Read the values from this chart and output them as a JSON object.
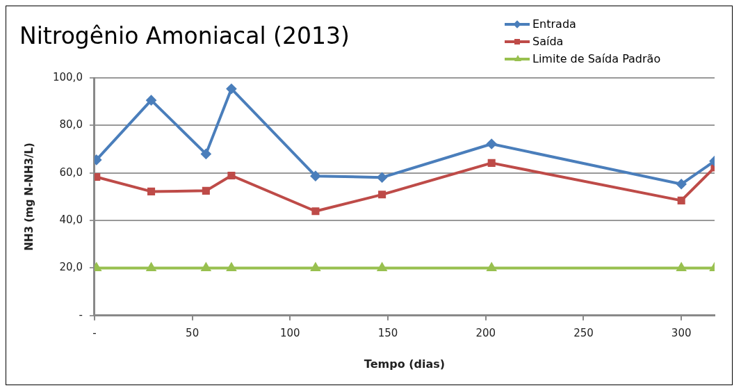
{
  "chart_data": {
    "type": "line",
    "title": "Nitrogênio Amoniacal (2013)",
    "xlabel": "Tempo (dias)",
    "ylabel": "NH3 (mg N-NH3/L)",
    "x": [
      1,
      29,
      57,
      70,
      113,
      147,
      203,
      300,
      317
    ],
    "series": [
      {
        "name": "Entrada",
        "color": "#4a7ebb",
        "marker": "diamond",
        "values": [
          65.5,
          90.6,
          68.0,
          95.4,
          58.7,
          58.1,
          72.2,
          55.3,
          65.0
        ]
      },
      {
        "name": "Saída",
        "color": "#be4b48",
        "marker": "square",
        "values": [
          58.3,
          52.2,
          52.5,
          58.9,
          43.9,
          50.9,
          64.2,
          48.4,
          62.3
        ]
      },
      {
        "name": "Limite de Saída Padrão",
        "color": "#98c04f",
        "marker": "triangle",
        "values": [
          20,
          20,
          20,
          20,
          20,
          20,
          20,
          20,
          20
        ]
      }
    ],
    "xlim": [
      0,
      317
    ],
    "xticks": [
      {
        "value": 0,
        "label": "-"
      },
      50,
      100,
      150,
      200,
      250,
      300
    ],
    "ylim": [
      0,
      100
    ],
    "yticks": [
      {
        "value": 0,
        "label": "-"
      },
      {
        "value": 20,
        "label": "20,0"
      },
      {
        "value": 40,
        "label": "40,0"
      },
      {
        "value": 60,
        "label": "60,0"
      },
      {
        "value": 80,
        "label": "80,0"
      },
      {
        "value": 100,
        "label": "100,0"
      }
    ],
    "grid": "y",
    "legend": "top right",
    "line_style": "solid"
  }
}
